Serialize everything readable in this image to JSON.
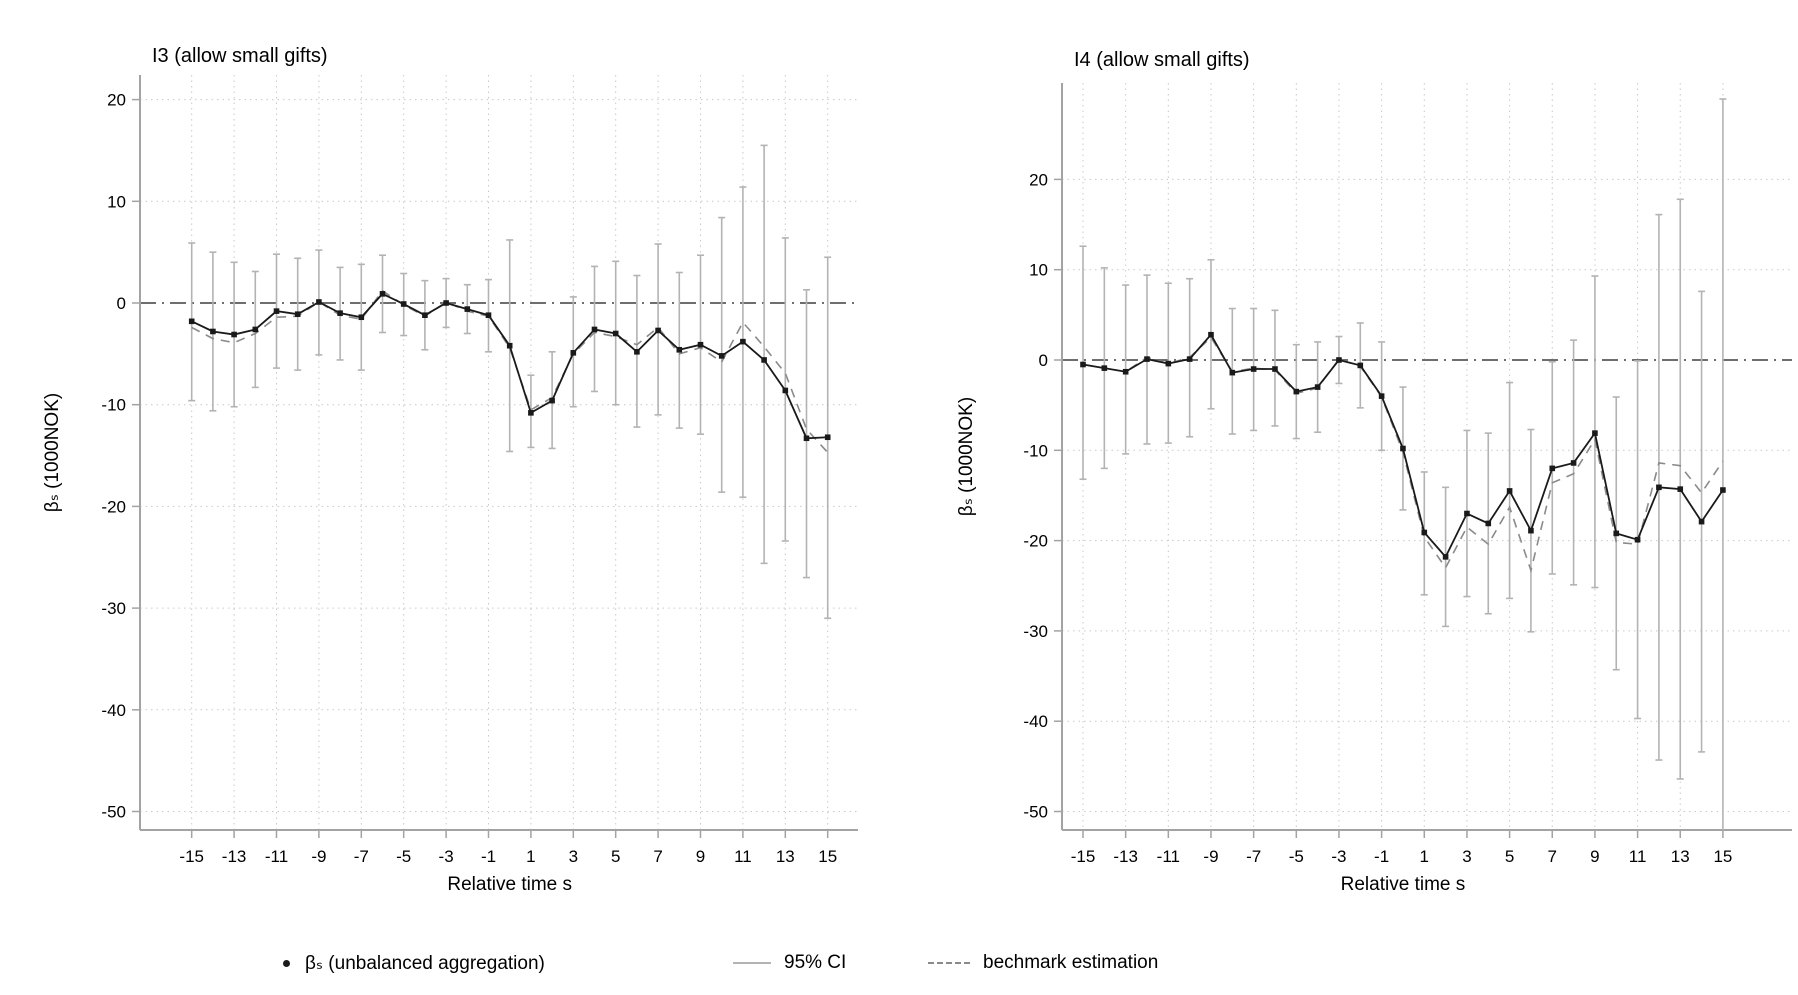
{
  "page": {
    "background": "#ffffff"
  },
  "colors": {
    "series": "#1a1a1a",
    "ci": "#b3b3b3",
    "benchmark": "#8a8a8a",
    "grid": "#c9c9c9",
    "zero_line": "#6e6e6e",
    "axis": "#a3a3a3",
    "text": "#000000"
  },
  "legend": {
    "items": [
      {
        "icon": "dot-marker-icon",
        "label": "βₛ (unbalanced aggregation)"
      },
      {
        "icon": "ci-line-icon",
        "label": "95% CI"
      },
      {
        "icon": "dashed-line-icon",
        "label": "bechmark estimation"
      }
    ]
  },
  "chart_data": [
    {
      "type": "line",
      "panel": "left",
      "title": "I3 (allow small gifts)",
      "xlabel": "Relative time s",
      "ylabel": "βₛ (1000NOK)",
      "x": [
        -15,
        -14,
        -13,
        -12,
        -11,
        -10,
        -9,
        -8,
        -7,
        -6,
        -5,
        -4,
        -3,
        -2,
        -1,
        0,
        1,
        2,
        3,
        4,
        5,
        6,
        7,
        8,
        9,
        10,
        11,
        12,
        13,
        14,
        15
      ],
      "series": [
        {
          "name": "βₛ (unbalanced aggregation)",
          "values": [
            -1.8,
            -2.8,
            -3.1,
            -2.6,
            -0.8,
            -1.1,
            0.1,
            -1.0,
            -1.4,
            0.9,
            -0.1,
            -1.2,
            0.0,
            -0.6,
            -1.2,
            -4.2,
            -10.8,
            -9.6,
            -4.9,
            -2.6,
            -3.0,
            -4.8,
            -2.7,
            -4.6,
            -4.1,
            -5.2,
            -3.8,
            -5.6,
            -8.6,
            -13.3,
            -13.2
          ]
        },
        {
          "name": "bechmark estimation",
          "values": [
            -2.4,
            -3.5,
            -3.9,
            -3.0,
            -1.4,
            -1.3,
            0.1,
            -1.2,
            -1.6,
            1.2,
            -0.2,
            -1.3,
            0.1,
            -0.8,
            -1.3,
            -4.4,
            -10.5,
            -9.3,
            -5.0,
            -2.9,
            -3.3,
            -4.1,
            -2.4,
            -5.0,
            -4.4,
            -5.8,
            -1.9,
            -4.3,
            -6.9,
            -12.4,
            -14.7
          ]
        }
      ],
      "ci_low": [
        -9.6,
        -10.6,
        -10.2,
        -8.3,
        -6.4,
        -6.6,
        -5.1,
        -5.6,
        -6.6,
        -2.9,
        -3.2,
        -4.6,
        -2.4,
        -3.0,
        -4.8,
        -14.6,
        -14.2,
        -14.3,
        -10.2,
        -8.7,
        -10.0,
        -12.2,
        -11.0,
        -12.3,
        -12.9,
        -18.6,
        -19.1,
        -25.6,
        -23.4,
        -27.0,
        -31.0
      ],
      "ci_high": [
        5.9,
        5.0,
        4.0,
        3.1,
        4.8,
        4.4,
        5.2,
        3.5,
        3.8,
        4.7,
        2.9,
        2.2,
        2.4,
        1.8,
        2.3,
        6.2,
        -7.1,
        -4.8,
        0.6,
        3.6,
        4.1,
        2.7,
        5.8,
        3.0,
        4.7,
        8.4,
        11.4,
        15.5,
        6.4,
        1.3,
        4.5
      ],
      "yticks": [
        20,
        10,
        0,
        -10,
        -20,
        -30,
        -40,
        -50
      ],
      "xticks": [
        -15,
        -13,
        -11,
        -9,
        -7,
        -5,
        -3,
        -1,
        1,
        3,
        5,
        7,
        9,
        11,
        13,
        15
      ],
      "ylim": [
        -51.8,
        22.4
      ],
      "grid": "dotted",
      "zero_line": "dash-dot"
    },
    {
      "type": "line",
      "panel": "right",
      "title": "I4 (allow small gifts)",
      "xlabel": "Relative time s",
      "ylabel": "βₛ (1000NOK)",
      "x": [
        -15,
        -14,
        -13,
        -12,
        -11,
        -10,
        -9,
        -8,
        -7,
        -6,
        -5,
        -4,
        -3,
        -2,
        -1,
        0,
        1,
        2,
        3,
        4,
        5,
        6,
        7,
        8,
        9,
        10,
        11,
        12,
        13,
        14,
        15
      ],
      "series": [
        {
          "name": "βₛ (unbalanced aggregation)",
          "values": [
            -0.5,
            -0.9,
            -1.3,
            0.1,
            -0.4,
            0.1,
            2.8,
            -1.4,
            -1.0,
            -1.0,
            -3.5,
            -3.0,
            0.0,
            -0.6,
            -4.0,
            -9.8,
            -19.1,
            -21.8,
            -17.0,
            -18.1,
            -14.5,
            -18.9,
            -12.0,
            -11.4,
            -8.1,
            -19.2,
            -19.9,
            -14.1,
            -14.3,
            -17.9,
            -14.4
          ]
        },
        {
          "name": "bechmark estimation",
          "values": [
            -0.5,
            -0.9,
            -1.3,
            0.3,
            -0.4,
            0.3,
            2.5,
            -1.3,
            -0.9,
            -1.1,
            -3.7,
            -3.1,
            0.1,
            -0.7,
            -4.1,
            -10.2,
            -19.6,
            -23.0,
            -18.5,
            -20.4,
            -16.3,
            -23.3,
            -13.6,
            -12.6,
            -8.8,
            -20.2,
            -20.4,
            -11.4,
            -11.7,
            -14.7,
            -11.2
          ]
        }
      ],
      "ci_low": [
        -13.2,
        -12.0,
        -10.4,
        -9.3,
        -9.2,
        -8.5,
        -5.4,
        -8.2,
        -7.8,
        -7.3,
        -8.7,
        -8.0,
        -2.6,
        -5.3,
        -10.0,
        -16.6,
        -26.0,
        -29.5,
        -26.2,
        -28.1,
        -26.4,
        -30.1,
        -23.7,
        -24.9,
        -25.2,
        -34.3,
        -39.7,
        -44.3,
        -46.4,
        -43.4,
        -57.7
      ],
      "ci_high": [
        12.6,
        10.2,
        8.3,
        9.4,
        8.5,
        9.0,
        11.1,
        5.7,
        5.7,
        5.5,
        1.7,
        2.0,
        2.6,
        4.1,
        2.0,
        -3.0,
        -12.4,
        -14.1,
        -7.8,
        -8.1,
        -2.5,
        -7.7,
        -0.2,
        2.2,
        9.3,
        -4.1,
        -0.1,
        16.1,
        17.8,
        7.6,
        28.9
      ],
      "yticks": [
        20,
        10,
        0,
        -10,
        -20,
        -30,
        -40,
        -50
      ],
      "xticks": [
        -15,
        -13,
        -11,
        -9,
        -7,
        -5,
        -3,
        -1,
        1,
        3,
        5,
        7,
        9,
        11,
        13,
        15
      ],
      "ylim": [
        -52.0,
        30.7
      ],
      "grid": "dotted",
      "zero_line": "dash-dot"
    }
  ]
}
